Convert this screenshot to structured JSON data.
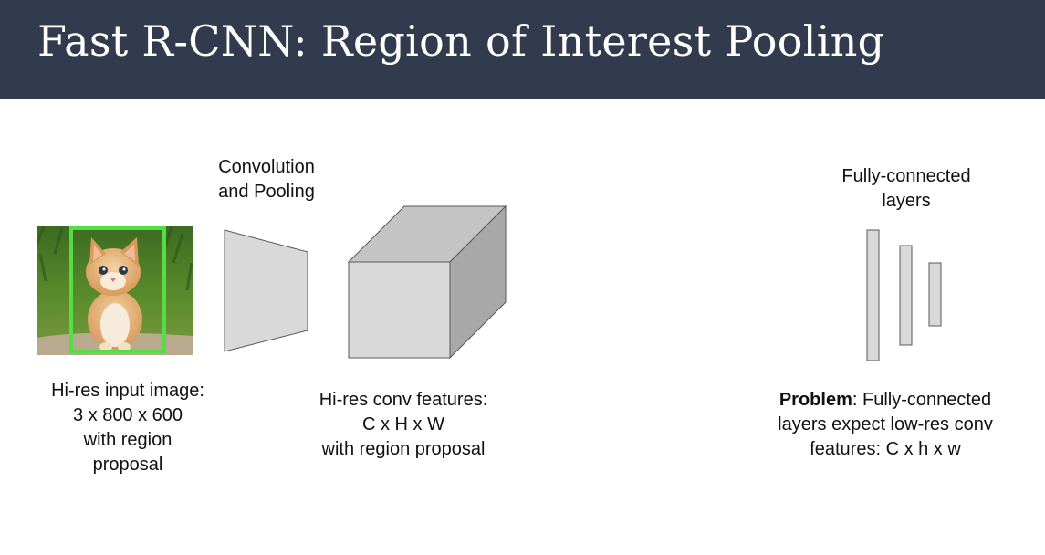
{
  "header": {
    "title": "Fast R-CNN: Region of Interest Pooling",
    "background": "#323b4d"
  },
  "conv_label": [
    "Convolution",
    "and Pooling"
  ],
  "fc_label": [
    "Fully-connected",
    "layers"
  ],
  "input_caption": [
    "Hi-res input image:",
    "3 x 800 x 600",
    "with region",
    "proposal"
  ],
  "features_caption": [
    "Hi-res conv features:",
    "C x H x W",
    "with region proposal"
  ],
  "problem_caption": {
    "bold": "Problem",
    "line1_rest": ": Fully-connected",
    "line2": "layers expect low-res conv",
    "line3": "features: C x h x w"
  },
  "colors": {
    "region_box": "#55dd44",
    "shape_fill": "#d9d9d9",
    "shape_side": "#a8a8a8",
    "shape_top": "#c4c4c4",
    "stroke": "#595959"
  },
  "icons": [
    "kitten-photo"
  ]
}
